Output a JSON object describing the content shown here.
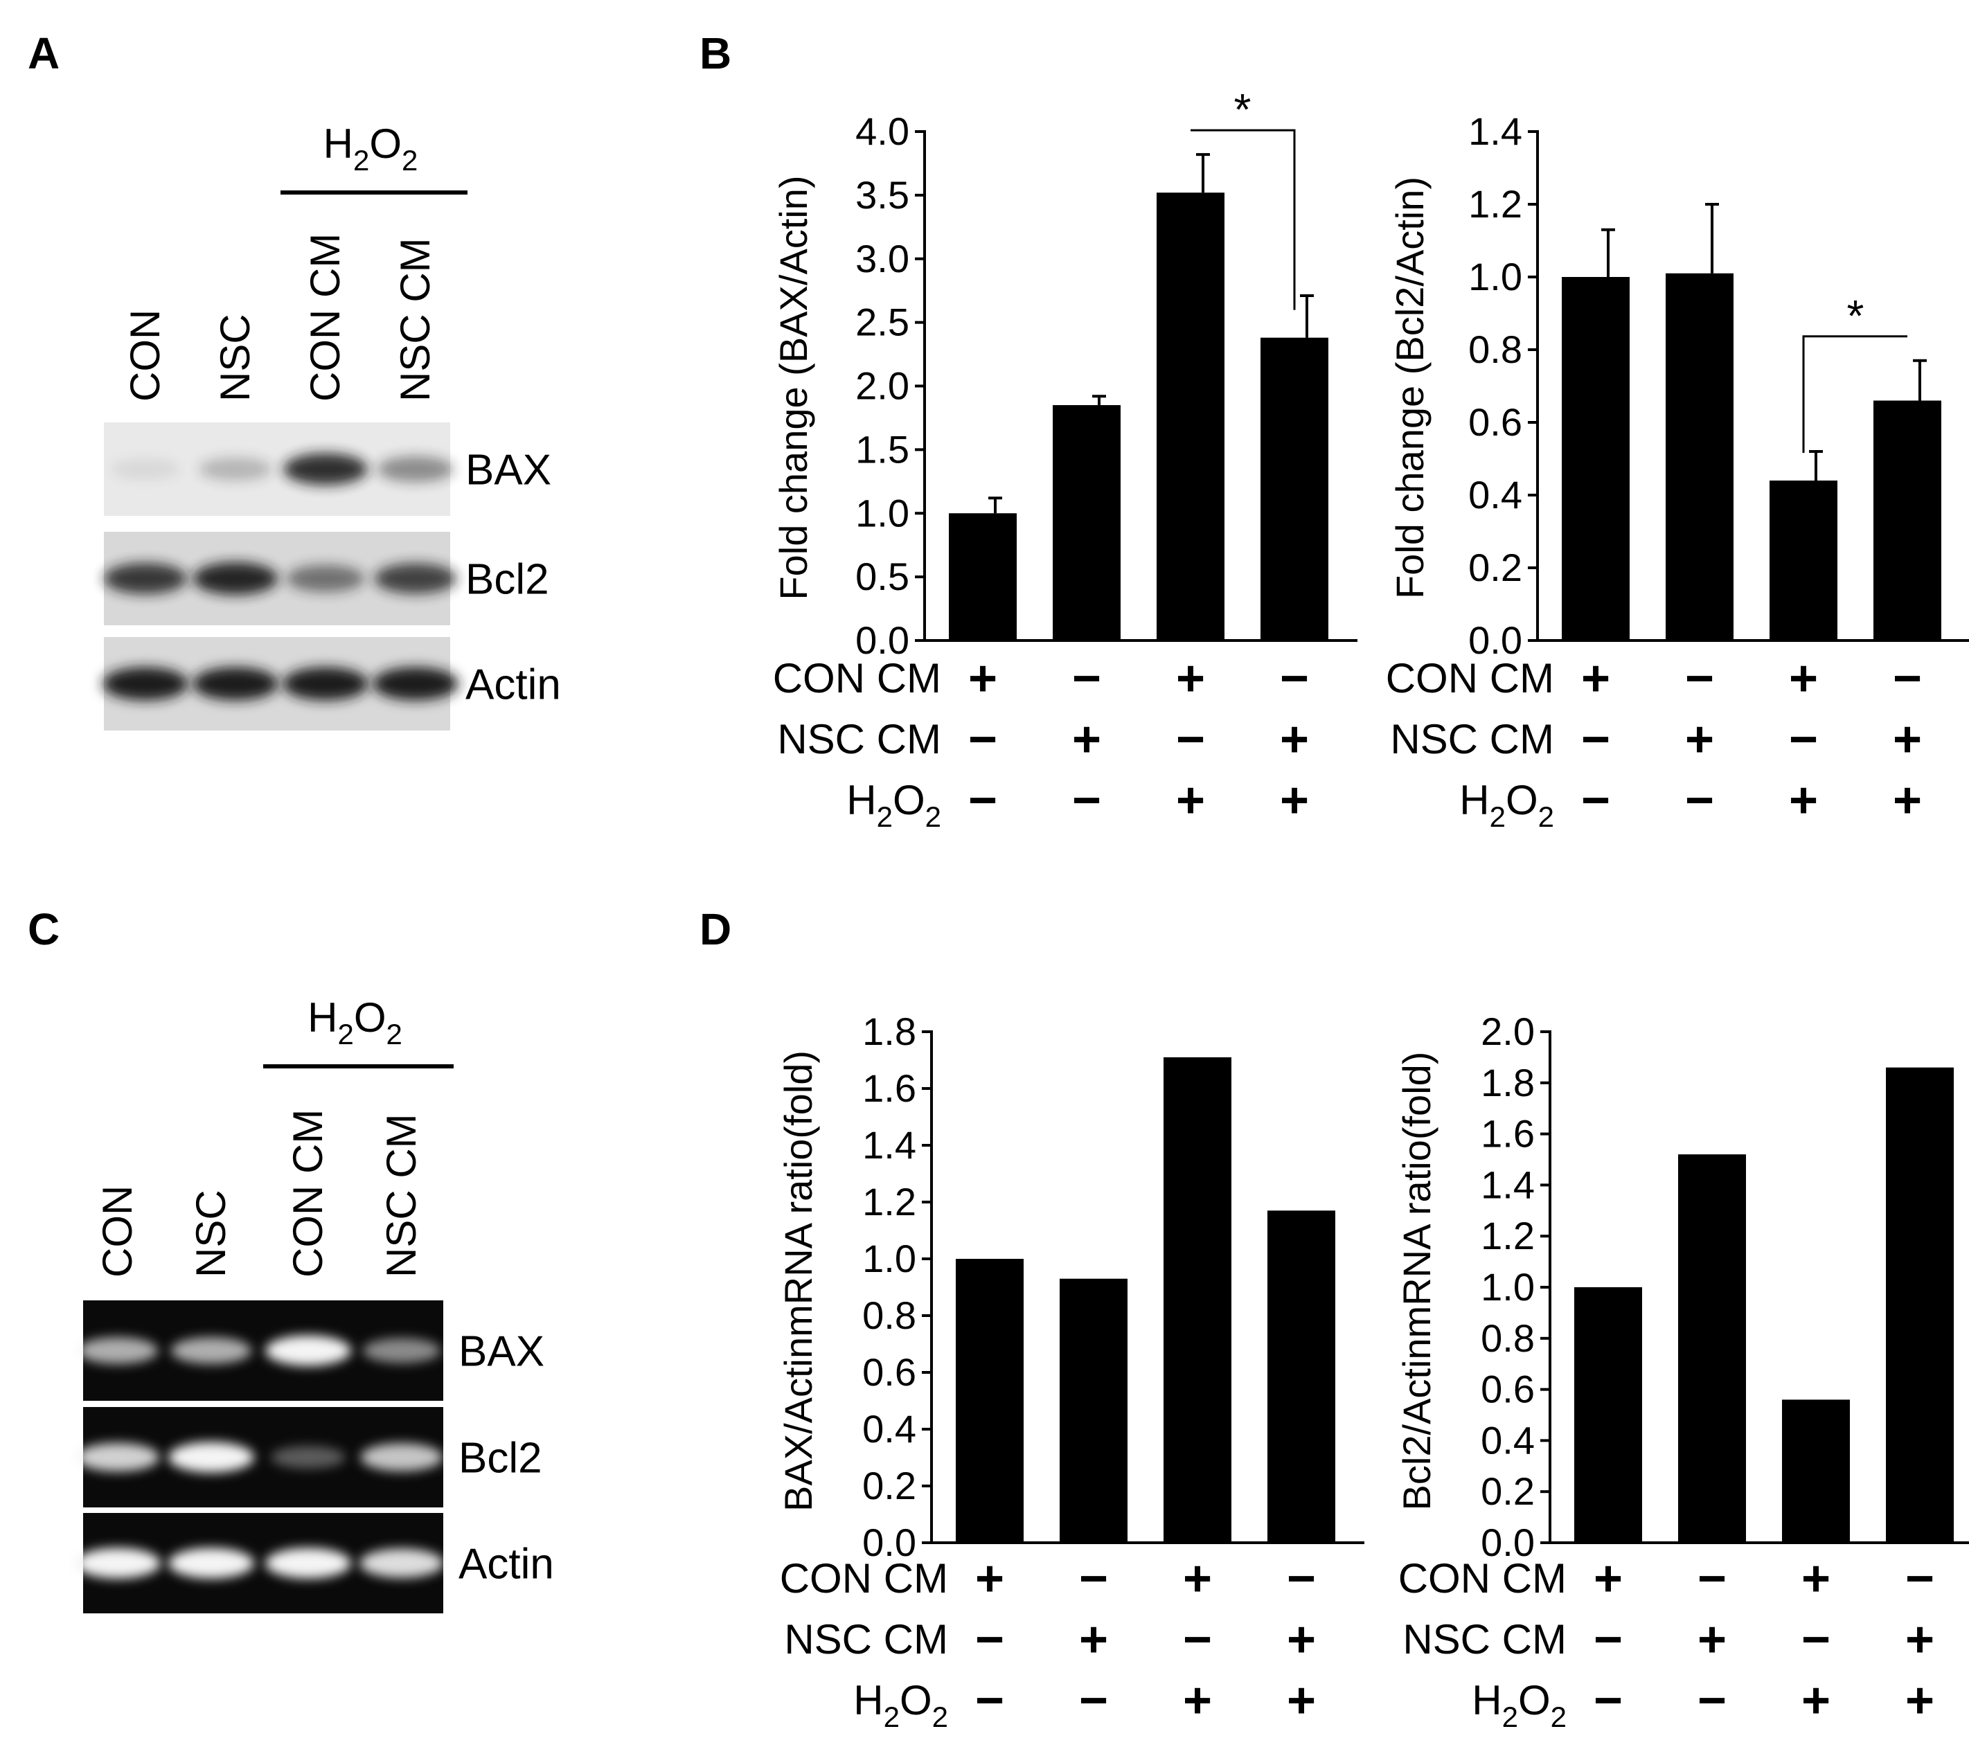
{
  "panels": {
    "a": "A",
    "b": "B",
    "c": "C",
    "d": "D"
  },
  "gel": {
    "h2o2": "H2O2",
    "lanes": [
      "CON",
      "NSC",
      "CON CM",
      "NSC CM"
    ],
    "rows": [
      "BAX",
      "Bcl2",
      "Actin"
    ]
  },
  "conditions": {
    "rows": [
      "CON CM",
      "NSC CM",
      "H2O2"
    ],
    "signs": [
      [
        "+",
        "−",
        "+",
        "−"
      ],
      [
        "−",
        "+",
        "−",
        "+"
      ],
      [
        "−",
        "−",
        "+",
        "+"
      ]
    ]
  },
  "significance": "*",
  "chart_data": [
    {
      "id": "B-left",
      "type": "bar",
      "ylabel": "Fold change (BAX/Actin)",
      "ylim": [
        0,
        4.0
      ],
      "yticks": [
        "0.0",
        "0.5",
        "1.0",
        "1.5",
        "2.0",
        "2.5",
        "3.0",
        "3.5",
        "4.0"
      ],
      "values": [
        1.0,
        1.85,
        3.52,
        2.38
      ],
      "errors": [
        0.12,
        0.07,
        0.3,
        0.33
      ],
      "significance": {
        "bars": [
          2,
          3
        ],
        "label": "*"
      }
    },
    {
      "id": "B-right",
      "type": "bar",
      "ylabel": "Fold change (Bcl2/Actin)",
      "ylim": [
        0,
        1.4
      ],
      "yticks": [
        "0.0",
        "0.2",
        "0.4",
        "0.6",
        "0.8",
        "1.0",
        "1.2",
        "1.4"
      ],
      "values": [
        1.0,
        1.01,
        0.44,
        0.66
      ],
      "errors": [
        0.13,
        0.19,
        0.08,
        0.11
      ],
      "significance": {
        "bars": [
          2,
          3
        ],
        "label": "*"
      }
    },
    {
      "id": "D-left",
      "type": "bar",
      "ylabel": "BAX/ActinmRNA ratio(fold)",
      "ylim": [
        0,
        1.8
      ],
      "yticks": [
        "0.0",
        "0.2",
        "0.4",
        "0.6",
        "0.8",
        "1.0",
        "1.2",
        "1.4",
        "1.6",
        "1.8"
      ],
      "values": [
        1.0,
        0.93,
        1.71,
        1.17
      ]
    },
    {
      "id": "D-right",
      "type": "bar",
      "ylabel": "Bcl2/ActinmRNA ratio(fold)",
      "ylim": [
        0,
        2.0
      ],
      "yticks": [
        "0.0",
        "0.2",
        "0.4",
        "0.6",
        "0.8",
        "1.0",
        "1.2",
        "1.4",
        "1.6",
        "1.8",
        "2.0"
      ],
      "values": [
        1.0,
        1.52,
        0.56,
        1.86
      ]
    }
  ]
}
